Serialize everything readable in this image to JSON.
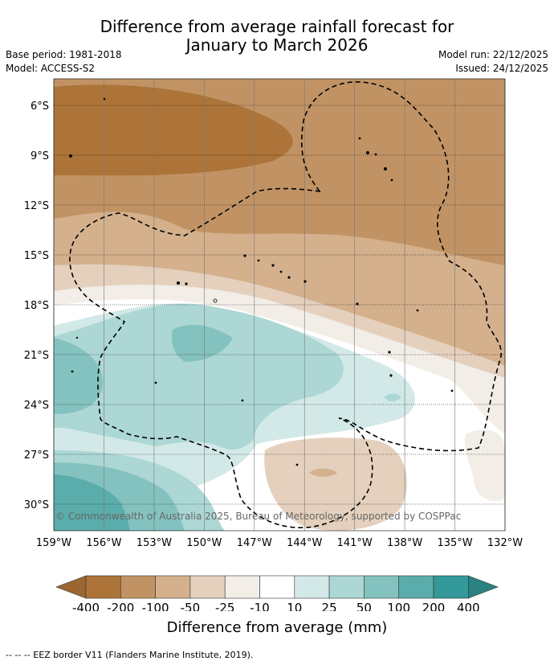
{
  "title": {
    "line1": "Difference from average rainfall forecast for",
    "line2": "January to March 2026"
  },
  "meta_left": {
    "base_period": "Base period: 1981-2018",
    "model": "Model: ACCESS-S2"
  },
  "meta_right": {
    "model_run": "Model run: 22/12/2025",
    "issued": "Issued: 24/12/2025"
  },
  "map": {
    "lat_labels": [
      "6°S",
      "9°S",
      "12°S",
      "15°S",
      "18°S",
      "21°S",
      "24°S",
      "27°S",
      "30°S"
    ],
    "lon_labels": [
      "159°W",
      "156°W",
      "153°W",
      "150°W",
      "147°W",
      "144°W",
      "141°W",
      "138°W",
      "135°W",
      "132°W"
    ],
    "copyright": "© Commonwealth of Australia 2025, Bureau of Meteorology, supported by COSPPac"
  },
  "colorbar": {
    "tick_labels": [
      "-400",
      "-200",
      "-100",
      "-50",
      "-25",
      "-10",
      "10",
      "25",
      "50",
      "100",
      "200",
      "400"
    ],
    "colors": [
      "#ad7439",
      "#c19364",
      "#d4b08d",
      "#e4d0bd",
      "#f2ede7",
      "#ffffff",
      "#d2e9e8",
      "#acd7d5",
      "#84c2c0",
      "#5aadab",
      "#33999a"
    ],
    "under_color": "#9b6631",
    "over_color": "#2a8281",
    "title": "Difference from average (mm)"
  },
  "footnote": "-- -- -- EEZ border V11 (Flanders Marine Institute, 2019)."
}
